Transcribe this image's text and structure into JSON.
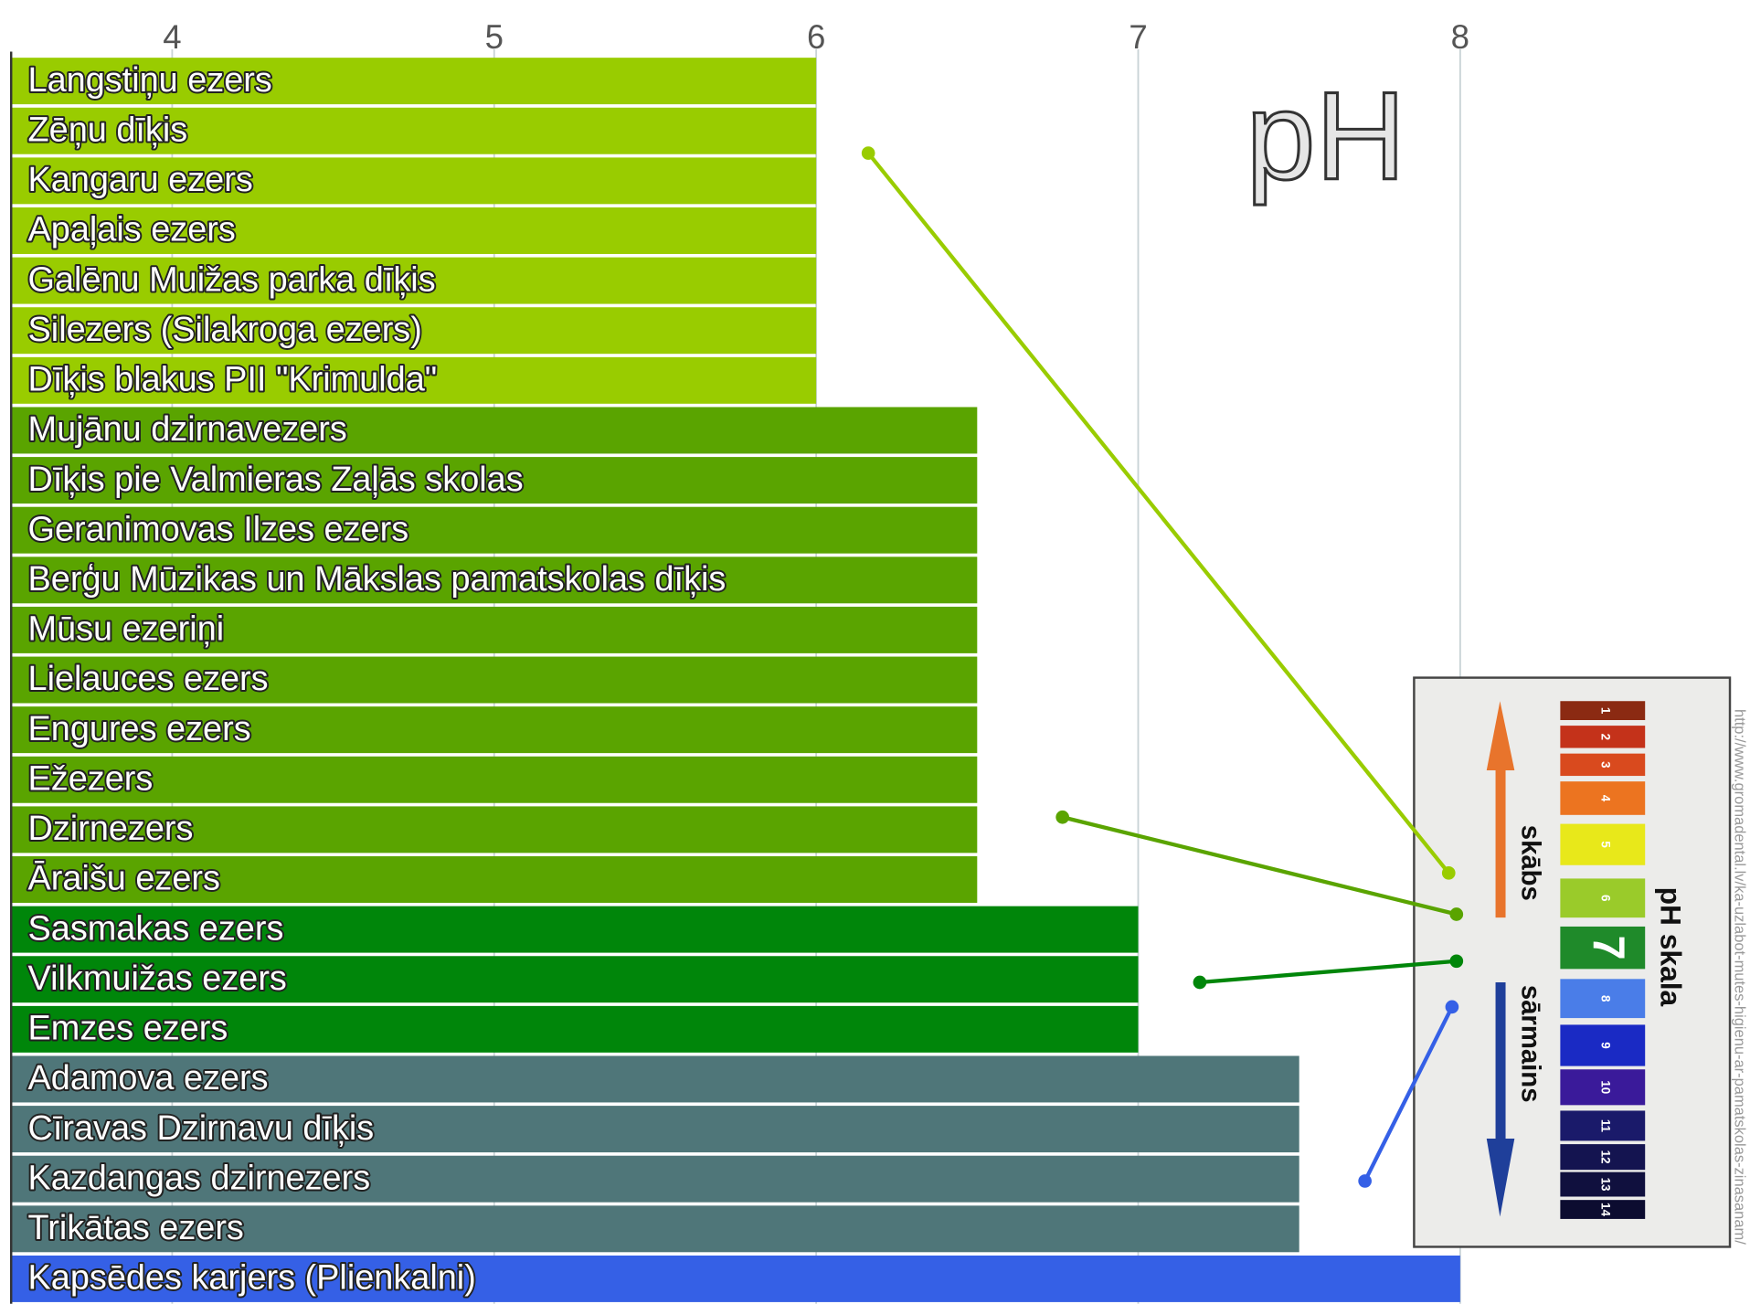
{
  "chart_data": {
    "type": "barh",
    "title": "pH",
    "categories": [
      "Langstiņu ezers",
      "Zēņu dīķis",
      "Kangaru ezers",
      "Apaļais ezers",
      "Galēnu Muižas parka dīķis",
      "Silezers (Silakroga ezers)",
      "Dīķis blakus PII \"Krimulda\"",
      "Mujānu dzirnavezers",
      "Dīķis pie Valmieras Zaļās skolas",
      "Geranimovas Ilzes ezers",
      "Berģu Mūzikas un Mākslas pamatskolas dīķis",
      "Mūsu ezeriņi",
      "Lielauces ezers",
      "Engures ezers",
      "Ežezers",
      "Dzirnezers",
      "Āraišu ezers",
      "Sasmakas ezers",
      "Vilkmuižas ezers",
      "Emzes ezers",
      "Adamova ezers",
      "Cīravas Dzirnavu dīķis",
      "Kazdangas dzirnezers",
      "Trikātas ezers",
      "Kapsēdes karjers (Plienkalni)"
    ],
    "values": [
      6,
      6,
      6,
      6,
      6,
      6,
      6,
      6.5,
      6.5,
      6.5,
      6.5,
      6.5,
      6.5,
      6.5,
      6.5,
      6.5,
      6.5,
      7,
      7,
      7,
      7.5,
      7.5,
      7.5,
      7.5,
      8
    ],
    "colors": [
      "#99cc00",
      "#99cc00",
      "#99cc00",
      "#99cc00",
      "#99cc00",
      "#99cc00",
      "#99cc00",
      "#5aa400",
      "#5aa400",
      "#5aa400",
      "#5aa400",
      "#5aa400",
      "#5aa400",
      "#5aa400",
      "#5aa400",
      "#5aa400",
      "#5aa400",
      "#00860a",
      "#00860a",
      "#00860a",
      "#4f7679",
      "#4f7679",
      "#4f7679",
      "#4f7679",
      "#3560e6"
    ],
    "xlim": [
      3.5,
      8.9
    ],
    "xticks": [
      4,
      5,
      6,
      7,
      8
    ],
    "grid": true
  },
  "inset": {
    "title": "pH skala",
    "acid": "skābs",
    "base": "sārmains",
    "scale": [
      1,
      2,
      3,
      4,
      5,
      6,
      7,
      8,
      9,
      10,
      11,
      12,
      13,
      14
    ],
    "source": "http://www.gromadental.lv/ka-uzlabot-mutes-higienu-ar-pamatskolas-zinasanam/"
  }
}
